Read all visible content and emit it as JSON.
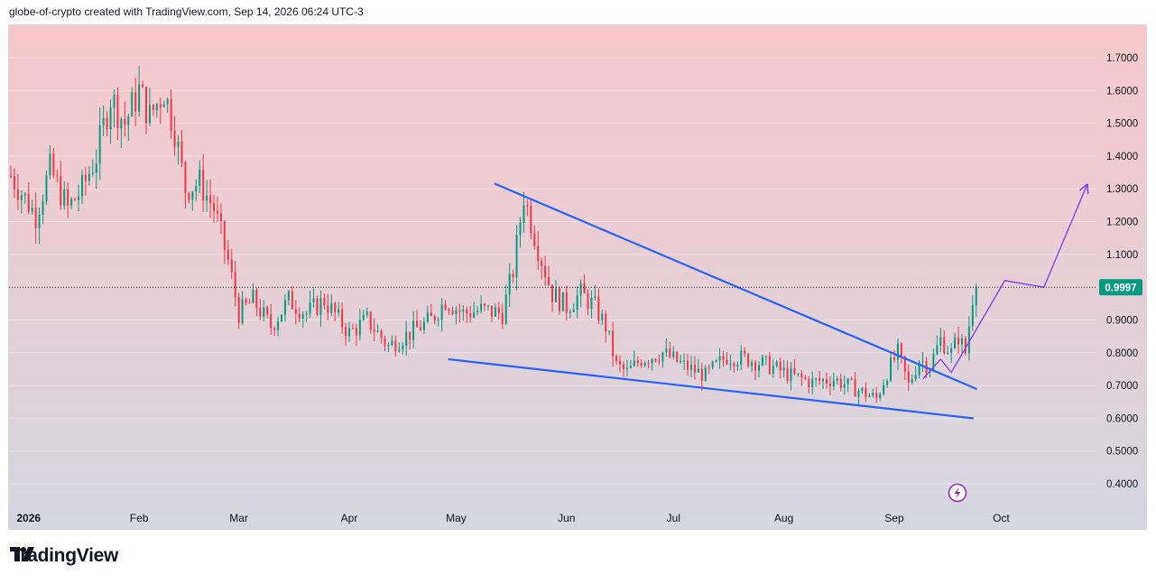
{
  "header": {
    "text": "globe-of-crypto created with TradingView.com, Sep 14, 2026 06:24 UTC-3"
  },
  "brand": {
    "name": "TradingView"
  },
  "chart_data": {
    "type": "candlestick",
    "x_ticks": [
      {
        "label": "2026",
        "date": "2026-01-01",
        "bold": true
      },
      {
        "label": "Feb",
        "date": "2026-02-01"
      },
      {
        "label": "Mar",
        "date": "2026-03-01"
      },
      {
        "label": "Apr",
        "date": "2026-04-01"
      },
      {
        "label": "May",
        "date": "2026-05-01"
      },
      {
        "label": "Jun",
        "date": "2026-06-01"
      },
      {
        "label": "Jul",
        "date": "2026-07-01"
      },
      {
        "label": "Aug",
        "date": "2026-08-01"
      },
      {
        "label": "Sep",
        "date": "2026-09-01"
      },
      {
        "label": "Oct",
        "date": "2026-10-01"
      }
    ],
    "y_ticks": [
      "0.4000",
      "0.5000",
      "0.6000",
      "0.7000",
      "0.8000",
      "0.9000",
      "1.0000",
      "1.1000",
      "1.2000",
      "1.3000",
      "1.4000",
      "1.5000",
      "1.6000",
      "1.7000"
    ],
    "y_range": [
      0.35,
      1.8
    ],
    "x_range": [
      "2025-12-27",
      "2026-10-28"
    ],
    "last_price": {
      "value": 0.9997,
      "label": "0.9997"
    },
    "colors": {
      "up": "#089981",
      "down": "#f23645",
      "trendline": "#2962ff",
      "projection": "#7b3fe4",
      "price_label": "#089981",
      "background_top": "#f8c8cc",
      "background_bottom": "#d5d7e0"
    },
    "price_path": [
      [
        "2025-12-27",
        1.34
      ],
      [
        "2026-01-03",
        1.22
      ],
      [
        "2026-01-07",
        1.36
      ],
      [
        "2026-01-12",
        1.24
      ],
      [
        "2026-01-16",
        1.3
      ],
      [
        "2026-01-20",
        1.4
      ],
      [
        "2026-01-24",
        1.58
      ],
      [
        "2026-01-28",
        1.5
      ],
      [
        "2026-02-01",
        1.6
      ],
      [
        "2026-02-04",
        1.52
      ],
      [
        "2026-02-08",
        1.6
      ],
      [
        "2026-02-11",
        1.48
      ],
      [
        "2026-02-14",
        1.3
      ],
      [
        "2026-02-18",
        1.32
      ],
      [
        "2026-02-22",
        1.24
      ],
      [
        "2026-02-26",
        1.08
      ],
      [
        "2026-03-01",
        0.92
      ],
      [
        "2026-03-05",
        0.96
      ],
      [
        "2026-03-10",
        0.88
      ],
      [
        "2026-03-15",
        0.96
      ],
      [
        "2026-03-20",
        0.92
      ],
      [
        "2026-03-25",
        0.96
      ],
      [
        "2026-04-01",
        0.86
      ],
      [
        "2026-04-06",
        0.9
      ],
      [
        "2026-04-12",
        0.82
      ],
      [
        "2026-04-18",
        0.86
      ],
      [
        "2026-04-24",
        0.9
      ],
      [
        "2026-04-28",
        0.96
      ],
      [
        "2026-05-03",
        0.92
      ],
      [
        "2026-05-08",
        0.93
      ],
      [
        "2026-05-14",
        0.92
      ],
      [
        "2026-05-17",
        1.05
      ],
      [
        "2026-05-20",
        1.28
      ],
      [
        "2026-05-24",
        1.12
      ],
      [
        "2026-05-28",
        0.98
      ],
      [
        "2026-06-01",
        0.94
      ],
      [
        "2026-06-05",
        0.98
      ],
      [
        "2026-06-09",
        0.94
      ],
      [
        "2026-06-12",
        0.88
      ],
      [
        "2026-06-15",
        0.76
      ],
      [
        "2026-06-18",
        0.74
      ],
      [
        "2026-06-22",
        0.78
      ],
      [
        "2026-06-28",
        0.8
      ],
      [
        "2026-07-04",
        0.76
      ],
      [
        "2026-07-10",
        0.73
      ],
      [
        "2026-07-16",
        0.79
      ],
      [
        "2026-07-22",
        0.78
      ],
      [
        "2026-07-28",
        0.76
      ],
      [
        "2026-08-03",
        0.73
      ],
      [
        "2026-08-09",
        0.71
      ],
      [
        "2026-08-15",
        0.72
      ],
      [
        "2026-08-21",
        0.69
      ],
      [
        "2026-08-27",
        0.66
      ],
      [
        "2026-08-30",
        0.74
      ],
      [
        "2026-09-02",
        0.8
      ],
      [
        "2026-09-05",
        0.7
      ],
      [
        "2026-09-08",
        0.78
      ],
      [
        "2026-09-11",
        0.76
      ],
      [
        "2026-09-14",
        0.84
      ],
      [
        "2026-09-17",
        0.8
      ],
      [
        "2026-09-19",
        0.85
      ],
      [
        "2026-09-21",
        0.8
      ],
      [
        "2026-09-23",
        0.97
      ],
      [
        "2026-09-24",
        0.9997
      ]
    ],
    "drawings": {
      "upper_trendline": [
        [
          "2026-05-12",
          1.315
        ],
        [
          "2026-09-24",
          0.69
        ]
      ],
      "lower_trendline": [
        [
          "2026-04-29",
          0.78
        ],
        [
          "2026-09-23",
          0.6
        ]
      ],
      "projection_path": [
        [
          "2026-09-09",
          0.72
        ],
        [
          "2026-09-14",
          0.78
        ],
        [
          "2026-09-17",
          0.74
        ],
        [
          "2026-10-02",
          1.02
        ],
        [
          "2026-10-13",
          1.0
        ],
        [
          "2026-10-25",
          1.31
        ]
      ]
    }
  }
}
